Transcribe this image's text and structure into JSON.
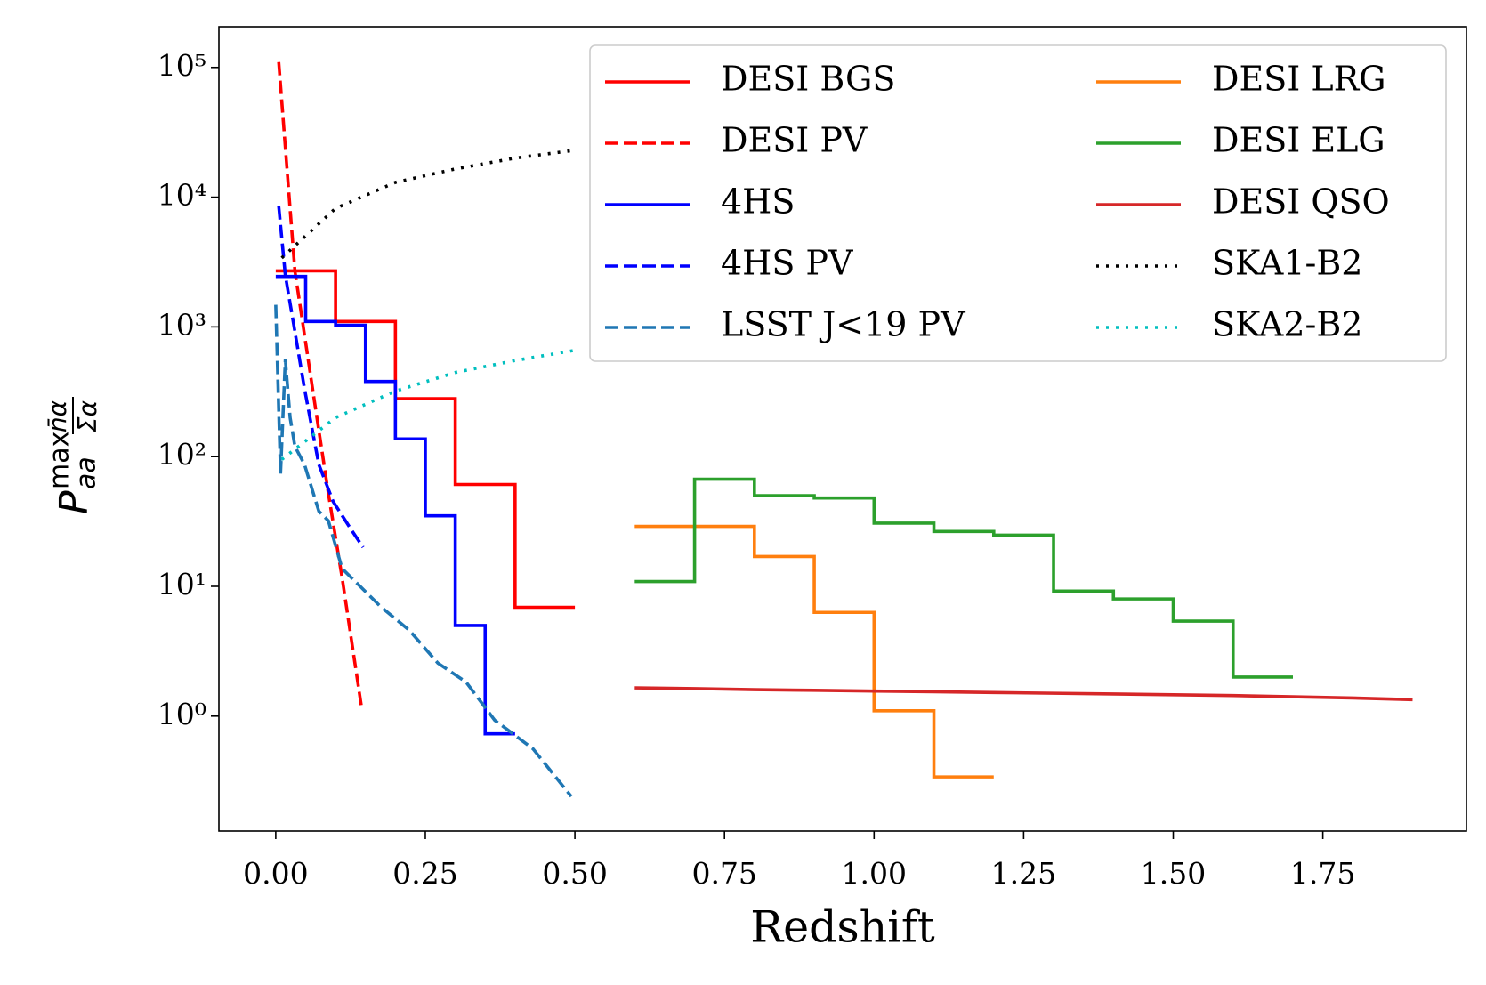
{
  "chart_data": {
    "type": "line",
    "xlabel": "Redshift",
    "ylabel": {
      "base": "P",
      "sub": "aa",
      "sup": "max",
      "num": "n̄α",
      "den": "Σα"
    },
    "xlim": [
      -0.095,
      1.99
    ],
    "ylim": [
      0.13,
      206000
    ],
    "log_y": true,
    "legend": "upper right",
    "legend_columns": 2,
    "xticks": [
      {
        "value": 0,
        "label": "0.00"
      },
      {
        "value": 0.25,
        "label": "0.25"
      },
      {
        "value": 0.5,
        "label": "0.50"
      },
      {
        "value": 0.75,
        "label": "0.75"
      },
      {
        "value": 1,
        "label": "1.00"
      },
      {
        "value": 1.25,
        "label": "1.25"
      },
      {
        "value": 1.5,
        "label": "1.50"
      },
      {
        "value": 1.75,
        "label": "1.75"
      }
    ],
    "yticks": [
      {
        "value": 1,
        "label": "10⁰"
      },
      {
        "value": 10,
        "label": "10¹"
      },
      {
        "value": 100,
        "label": "10²"
      },
      {
        "value": 1000,
        "label": "10³"
      },
      {
        "value": 10000,
        "label": "10⁴"
      },
      {
        "value": 100000,
        "label": "10⁵"
      }
    ],
    "series": [
      {
        "name": "DESI BGS",
        "color": "#ff0000",
        "dash": "solid",
        "x": [
          0,
          0.1,
          0.1,
          0.2,
          0.2,
          0.3,
          0.3,
          0.4,
          0.4,
          0.5
        ],
        "values": [
          2700,
          2700,
          1100,
          1100,
          280,
          280,
          61,
          61,
          6.9,
          6.9
        ]
      },
      {
        "name": "DESI PV",
        "color": "#ff0000",
        "dash": "dashed",
        "x": [
          0.005,
          0.032,
          0.064,
          0.088,
          0.111,
          0.143
        ],
        "values": [
          110000,
          2700,
          280,
          52,
          11.6,
          1.2
        ]
      },
      {
        "name": "4HS",
        "color": "#0000ff",
        "dash": "solid",
        "x": [
          0,
          0.05,
          0.05,
          0.1,
          0.1,
          0.15,
          0.15,
          0.2,
          0.2,
          0.25,
          0.25,
          0.3,
          0.3,
          0.35,
          0.35,
          0.4
        ],
        "values": [
          2450,
          2450,
          1100,
          1100,
          1030,
          1030,
          380,
          380,
          137,
          137,
          35,
          35,
          5,
          5,
          0.73,
          0.73
        ]
      },
      {
        "name": "4HS PV",
        "color": "#0000ff",
        "dash": "dashed",
        "x": [
          0.005,
          0.016,
          0.032,
          0.048,
          0.072,
          0.096,
          0.127,
          0.146
        ],
        "values": [
          8500,
          2500,
          920,
          335,
          87,
          45,
          27,
          20
        ]
      },
      {
        "name": "LSST J<19 PV",
        "color": "#1f77b4",
        "dash": "dashed",
        "x": [
          0,
          0.008,
          0.016,
          0.024,
          0.032,
          0.048,
          0.072,
          0.088,
          0.111,
          0.143,
          0.175,
          0.223,
          0.271,
          0.318,
          0.366,
          0.43,
          0.494
        ],
        "values": [
          1480,
          74,
          560,
          200,
          120,
          87,
          38,
          32,
          13.7,
          9.8,
          7,
          4.6,
          2.56,
          1.83,
          0.93,
          0.56,
          0.24
        ]
      },
      {
        "name": "DESI LRG",
        "color": "#ff7f0e",
        "dash": "solid",
        "x": [
          0.6,
          0.8,
          0.8,
          0.9,
          0.9,
          1.0,
          1.0,
          1.1,
          1.1,
          1.2
        ],
        "values": [
          29,
          29,
          17,
          17,
          6.3,
          6.3,
          1.1,
          1.1,
          0.34,
          0.34
        ]
      },
      {
        "name": "DESI ELG",
        "color": "#2ca02c",
        "dash": "solid",
        "x": [
          0.6,
          0.7,
          0.7,
          0.8,
          0.8,
          0.9,
          0.9,
          1.0,
          1.0,
          1.1,
          1.1,
          1.2,
          1.2,
          1.3,
          1.3,
          1.4,
          1.4,
          1.5,
          1.5,
          1.6,
          1.6,
          1.7
        ],
        "values": [
          10.9,
          10.9,
          67,
          67,
          50,
          50,
          48,
          48,
          30.7,
          30.7,
          26.5,
          26.5,
          24.8,
          24.8,
          9.2,
          9.2,
          8.0,
          8.0,
          5.4,
          5.4,
          2.0,
          2.0
        ]
      },
      {
        "name": "DESI QSO",
        "color": "#d62728",
        "dash": "solid",
        "x": [
          0.6,
          0.7,
          0.8,
          0.9,
          1.0,
          1.1,
          1.2,
          1.3,
          1.4,
          1.5,
          1.6,
          1.7,
          1.8,
          1.9
        ],
        "values": [
          1.65,
          1.63,
          1.6,
          1.58,
          1.56,
          1.54,
          1.52,
          1.5,
          1.48,
          1.46,
          1.44,
          1.41,
          1.38,
          1.34
        ]
      },
      {
        "name": "SKA1-B2",
        "color": "#000000",
        "dash": "dotted",
        "x": [
          0.01,
          0.1,
          0.2,
          0.3,
          0.4,
          0.5
        ],
        "values": [
          3400,
          8200,
          13000,
          16500,
          20000,
          23000
        ]
      },
      {
        "name": "SKA2-B2",
        "color": "#00bfbf",
        "dash": "dotted",
        "x": [
          0.01,
          0.1,
          0.2,
          0.3,
          0.4,
          0.5
        ],
        "values": [
          95,
          200,
          320,
          445,
          550,
          660
        ]
      }
    ]
  }
}
